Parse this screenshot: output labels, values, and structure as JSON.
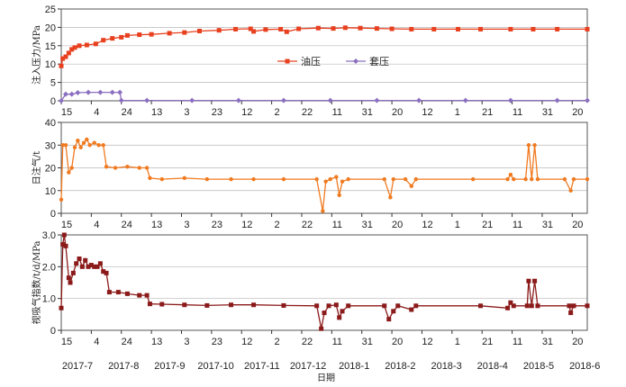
{
  "x_axis": {
    "title": "日期",
    "day_labels": [
      "15",
      "4",
      "24",
      "13",
      "3",
      "23",
      "12",
      "2",
      "22",
      "11",
      "31",
      "20",
      "12",
      "1",
      "21",
      "11",
      "31",
      "20"
    ],
    "month_labels": [
      "2017-7",
      "2017-8",
      "2017-9",
      "2017-10",
      "2017-11",
      "2017-12",
      "2018-1",
      "2018-2",
      "2018-3",
      "2018-4",
      "2018-5",
      "2018-6"
    ]
  },
  "chart_data": [
    {
      "type": "line",
      "ylabel": "注入压力/MPa",
      "ylim": [
        0,
        25
      ],
      "yticks": [
        "0",
        "5",
        "10",
        "15",
        "20",
        "25"
      ],
      "grid": true,
      "legend_position": "center",
      "x_range": [
        "2017-07-15",
        "2018-06-30"
      ],
      "series": [
        {
          "name": "油压",
          "color": "#e8401f",
          "marker": "square",
          "points": [
            [
              "2017-07-15",
              9.5
            ],
            [
              "2017-07-16",
              11.5
            ],
            [
              "2017-07-18",
              12
            ],
            [
              "2017-07-20",
              13
            ],
            [
              "2017-07-22",
              14
            ],
            [
              "2017-07-24",
              14.5
            ],
            [
              "2017-07-27",
              15
            ],
            [
              "2017-08-01",
              15.2
            ],
            [
              "2017-08-07",
              15.5
            ],
            [
              "2017-08-12",
              16.5
            ],
            [
              "2017-08-18",
              17
            ],
            [
              "2017-08-24",
              17.3
            ],
            [
              "2017-08-28",
              17.8
            ],
            [
              "2017-09-05",
              18
            ],
            [
              "2017-09-13",
              18.1
            ],
            [
              "2017-09-25",
              18.4
            ],
            [
              "2017-10-05",
              18.6
            ],
            [
              "2017-10-15",
              19
            ],
            [
              "2017-10-28",
              19.2
            ],
            [
              "2017-11-08",
              19.5
            ],
            [
              "2017-11-18",
              19.6
            ],
            [
              "2017-11-20",
              18.9
            ],
            [
              "2017-11-28",
              19.4
            ],
            [
              "2017-12-08",
              19.5
            ],
            [
              "2017-12-12",
              18.8
            ],
            [
              "2017-12-20",
              19.6
            ],
            [
              "2018-01-02",
              19.8
            ],
            [
              "2018-01-12",
              19.7
            ],
            [
              "2018-01-20",
              19.9
            ],
            [
              "2018-01-30",
              19.8
            ],
            [
              "2018-02-10",
              19.7
            ],
            [
              "2018-02-20",
              19.6
            ],
            [
              "2018-03-05",
              19.5
            ],
            [
              "2018-03-20",
              19.5
            ],
            [
              "2018-04-05",
              19.5
            ],
            [
              "2018-04-20",
              19.5
            ],
            [
              "2018-05-10",
              19.5
            ],
            [
              "2018-05-25",
              19.5
            ],
            [
              "2018-06-10",
              19.5
            ],
            [
              "2018-06-30",
              19.5
            ]
          ]
        },
        {
          "name": "套压",
          "color": "#8b6fc0",
          "marker": "diamond",
          "points": [
            [
              "2017-07-15",
              0
            ],
            [
              "2017-07-18",
              1.8
            ],
            [
              "2017-07-22",
              1.8
            ],
            [
              "2017-07-26",
              2.2
            ],
            [
              "2017-08-02",
              2.3
            ],
            [
              "2017-08-10",
              2.3
            ],
            [
              "2017-08-18",
              2.3
            ],
            [
              "2017-08-23",
              2.3
            ],
            [
              "2017-08-24",
              0.1
            ],
            [
              "2017-09-10",
              0.1
            ],
            [
              "2017-10-10",
              0.1
            ],
            [
              "2017-11-10",
              0.1
            ],
            [
              "2017-12-10",
              0.1
            ],
            [
              "2018-01-10",
              0.1
            ],
            [
              "2018-02-10",
              0.1
            ],
            [
              "2018-03-10",
              0.1
            ],
            [
              "2018-04-10",
              0.1
            ],
            [
              "2018-05-10",
              0.1
            ],
            [
              "2018-06-10",
              0.1
            ],
            [
              "2018-06-30",
              0.1
            ]
          ]
        }
      ]
    },
    {
      "type": "line",
      "ylabel": "日注气/t",
      "ylim": [
        0,
        40
      ],
      "yticks": [
        "0",
        "10",
        "20",
        "30",
        "40"
      ],
      "grid": true,
      "x_range": [
        "2017-07-15",
        "2018-06-30"
      ],
      "series": [
        {
          "name": "",
          "color": "#f07a20",
          "marker": "circle",
          "points": [
            [
              "2017-07-15",
              6
            ],
            [
              "2017-07-16",
              30
            ],
            [
              "2017-07-18",
              30
            ],
            [
              "2017-07-20",
              18
            ],
            [
              "2017-07-22",
              20
            ],
            [
              "2017-07-24",
              29
            ],
            [
              "2017-07-26",
              32
            ],
            [
              "2017-07-28",
              29
            ],
            [
              "2017-07-30",
              31
            ],
            [
              "2017-08-01",
              32.5
            ],
            [
              "2017-08-03",
              30
            ],
            [
              "2017-08-06",
              31
            ],
            [
              "2017-08-09",
              30
            ],
            [
              "2017-08-12",
              30
            ],
            [
              "2017-08-14",
              20.5
            ],
            [
              "2017-08-20",
              20
            ],
            [
              "2017-08-28",
              20.5
            ],
            [
              "2017-09-05",
              20
            ],
            [
              "2017-09-10",
              20
            ],
            [
              "2017-09-12",
              15.5
            ],
            [
              "2017-09-20",
              15
            ],
            [
              "2017-10-05",
              15.5
            ],
            [
              "2017-10-20",
              15
            ],
            [
              "2017-11-05",
              15
            ],
            [
              "2017-11-20",
              15
            ],
            [
              "2017-12-10",
              15
            ],
            [
              "2018-01-01",
              15
            ],
            [
              "2018-01-05",
              1
            ],
            [
              "2018-01-07",
              14
            ],
            [
              "2018-01-10",
              15
            ],
            [
              "2018-01-14",
              16
            ],
            [
              "2018-01-16",
              8
            ],
            [
              "2018-01-18",
              14
            ],
            [
              "2018-01-22",
              15
            ],
            [
              "2018-02-15",
              15
            ],
            [
              "2018-02-19",
              7
            ],
            [
              "2018-02-21",
              15
            ],
            [
              "2018-03-01",
              15
            ],
            [
              "2018-03-05",
              12
            ],
            [
              "2018-03-08",
              15
            ],
            [
              "2018-04-15",
              15
            ],
            [
              "2018-05-08",
              15
            ],
            [
              "2018-05-10",
              17
            ],
            [
              "2018-05-12",
              15
            ],
            [
              "2018-05-20",
              15
            ],
            [
              "2018-05-22",
              30
            ],
            [
              "2018-05-24",
              15
            ],
            [
              "2018-05-26",
              30
            ],
            [
              "2018-05-28",
              15
            ],
            [
              "2018-06-15",
              15
            ],
            [
              "2018-06-19",
              10
            ],
            [
              "2018-06-21",
              15
            ],
            [
              "2018-06-30",
              15
            ]
          ]
        }
      ]
    },
    {
      "type": "line",
      "ylabel": "视吸气指数/t/d/MPa",
      "ylim": [
        0,
        3
      ],
      "yticks": [
        "0",
        "1.0",
        "2.0",
        "3.0"
      ],
      "grid": true,
      "x_range": [
        "2017-07-15",
        "2018-06-30"
      ],
      "series": [
        {
          "name": "",
          "color": "#8b1a1a",
          "marker": "square",
          "points": [
            [
              "2017-07-15",
              0.7
            ],
            [
              "2017-07-16",
              2.7
            ],
            [
              "2017-07-17",
              3.0
            ],
            [
              "2017-07-18",
              2.65
            ],
            [
              "2017-07-20",
              1.65
            ],
            [
              "2017-07-21",
              1.5
            ],
            [
              "2017-07-23",
              1.8
            ],
            [
              "2017-07-25",
              2.1
            ],
            [
              "2017-07-27",
              2.25
            ],
            [
              "2017-07-29",
              2.0
            ],
            [
              "2017-07-31",
              2.2
            ],
            [
              "2017-08-02",
              2.0
            ],
            [
              "2017-08-04",
              2.05
            ],
            [
              "2017-08-06",
              2.0
            ],
            [
              "2017-08-08",
              2.0
            ],
            [
              "2017-08-10",
              2.1
            ],
            [
              "2017-08-12",
              1.85
            ],
            [
              "2017-08-14",
              1.8
            ],
            [
              "2017-08-16",
              1.2
            ],
            [
              "2017-08-22",
              1.2
            ],
            [
              "2017-08-28",
              1.15
            ],
            [
              "2017-09-05",
              1.1
            ],
            [
              "2017-09-10",
              1.1
            ],
            [
              "2017-09-12",
              0.83
            ],
            [
              "2017-09-20",
              0.82
            ],
            [
              "2017-10-05",
              0.8
            ],
            [
              "2017-10-20",
              0.78
            ],
            [
              "2017-11-05",
              0.8
            ],
            [
              "2017-11-20",
              0.8
            ],
            [
              "2017-12-10",
              0.78
            ],
            [
              "2018-01-01",
              0.77
            ],
            [
              "2018-01-04",
              0.05
            ],
            [
              "2018-01-06",
              0.55
            ],
            [
              "2018-01-09",
              0.77
            ],
            [
              "2018-01-14",
              0.8
            ],
            [
              "2018-01-16",
              0.4
            ],
            [
              "2018-01-18",
              0.6
            ],
            [
              "2018-01-22",
              0.77
            ],
            [
              "2018-02-15",
              0.77
            ],
            [
              "2018-02-18",
              0.35
            ],
            [
              "2018-02-21",
              0.6
            ],
            [
              "2018-02-24",
              0.77
            ],
            [
              "2018-03-05",
              0.65
            ],
            [
              "2018-03-08",
              0.77
            ],
            [
              "2018-04-20",
              0.77
            ],
            [
              "2018-05-08",
              0.7
            ],
            [
              "2018-05-10",
              0.87
            ],
            [
              "2018-05-12",
              0.77
            ],
            [
              "2018-05-21",
              0.77
            ],
            [
              "2018-05-22",
              1.55
            ],
            [
              "2018-05-24",
              0.77
            ],
            [
              "2018-05-26",
              1.55
            ],
            [
              "2018-05-28",
              0.77
            ],
            [
              "2018-06-18",
              0.77
            ],
            [
              "2018-06-19",
              0.55
            ],
            [
              "2018-06-21",
              0.77
            ],
            [
              "2018-06-30",
              0.77
            ]
          ]
        }
      ]
    }
  ]
}
